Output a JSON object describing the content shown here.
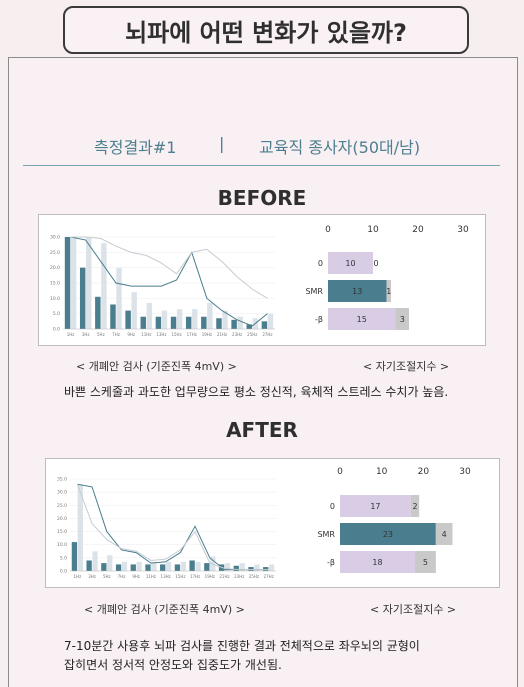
{
  "header": {
    "title": "뇌파에 어떤 변화가 있을까?"
  },
  "subject": {
    "result": "측정결과#1",
    "separator": "|",
    "person": "교육직 종사자(50대/남)"
  },
  "before": {
    "heading": "BEFORE",
    "caption_left": "< 개폐안 검사 (기준진폭 4mV) >",
    "caption_right": "< 자기조절지수 >",
    "note": "바쁜 스케줄과 과도한 업무량으로 평소 정신적, 육체적 스트레스 수치가 높음."
  },
  "after": {
    "heading": "AFTER",
    "caption_left": "< 개폐안 검사 (기준진폭 4mV) >",
    "caption_right": "< 자기조절지수 >",
    "note_line1": "7-10분간 사용후 뇌파 검사를 진행한 결과 전체적으로 좌우뇌의 균형이",
    "note_line2": "잡히면서 정서적 안정도와 집중도가 개선됨."
  },
  "colors": {
    "dark_bar": "#4a7d8e",
    "light_bar": "#dbe3e9",
    "lavender": "#d9cde6",
    "gray": "#c9c9c9",
    "line_dark": "#4a7d8e",
    "line_light": "#c5ccd2"
  },
  "chart_data": [
    {
      "type": "bar",
      "ylim": [
        0,
        30
      ],
      "yticks": [
        "0.0",
        "5.0",
        "10.0",
        "15.0",
        "20.0",
        "25.0",
        "30.0"
      ],
      "categories": [
        "1Hz",
        "3Hz",
        "5Hz",
        "7Hz",
        "9Hz",
        "11Hz",
        "13Hz",
        "15Hz",
        "17Hz",
        "19Hz",
        "21Hz",
        "23Hz",
        "25Hz",
        "27Hz"
      ],
      "series": [
        {
          "values": [
            30,
            20,
            10.5,
            8,
            6,
            4,
            4,
            4,
            4,
            4,
            3.5,
            3,
            1.5,
            2.5
          ]
        },
        {
          "values": [
            30,
            30,
            28,
            20,
            12,
            8.5,
            6,
            6.5,
            6.5,
            8.5,
            6,
            4,
            3.5,
            5
          ]
        }
      ],
      "lines": [
        {
          "values": [
            30,
            29,
            22,
            15,
            14,
            14,
            14,
            16,
            25,
            10,
            6,
            3,
            1,
            5
          ]
        },
        {
          "values": [
            30,
            30,
            29.5,
            27,
            25,
            24,
            21.5,
            18,
            25,
            26,
            22,
            17,
            13,
            10
          ]
        }
      ]
    },
    {
      "type": "bar",
      "orientation": "horizontal",
      "xlim": [
        0,
        30
      ],
      "xticks": [
        0,
        10,
        20,
        30
      ],
      "categories": [
        "0",
        "SMR",
        "-β"
      ],
      "segments": [
        {
          "label": "10",
          "values": [
            10,
            13,
            15
          ]
        },
        {
          "label": "0",
          "values": [
            0,
            1,
            3
          ]
        }
      ]
    },
    {
      "type": "bar",
      "ylim": [
        0,
        35
      ],
      "yticks": [
        "0.0",
        "5.0",
        "10.0",
        "15.0",
        "20.0",
        "25.0",
        "30.0",
        "35.0"
      ],
      "categories": [
        "1Hz",
        "3Hz",
        "5Hz",
        "7Hz",
        "9Hz",
        "11Hz",
        "13Hz",
        "15Hz",
        "17Hz",
        "19Hz",
        "21Hz",
        "23Hz",
        "25Hz",
        "27Hz"
      ],
      "series": [
        {
          "values": [
            11,
            4,
            3,
            2.5,
            2.5,
            2.5,
            2.5,
            2.5,
            4,
            3,
            2.5,
            2,
            1.5,
            1.5
          ]
        },
        {
          "values": [
            33,
            7.5,
            6,
            3.5,
            3.5,
            3.5,
            3.5,
            3.5,
            3.5,
            5.5,
            3,
            3,
            2.5,
            2.5
          ]
        }
      ],
      "lines": [
        {
          "values": [
            33,
            32,
            15,
            8,
            7,
            3,
            3.5,
            7,
            17,
            5,
            0.5,
            0.5,
            0.5,
            0.5
          ]
        },
        {
          "values": [
            33,
            18,
            12,
            8.5,
            7.5,
            4,
            4.5,
            8,
            15,
            3,
            1,
            0.5,
            0.5,
            0.5
          ]
        }
      ]
    },
    {
      "type": "bar",
      "orientation": "horizontal",
      "xlim": [
        0,
        30
      ],
      "xticks": [
        0,
        10,
        20,
        30
      ],
      "categories": [
        "0",
        "SMR",
        "-β"
      ],
      "segments": [
        {
          "values": [
            17,
            23,
            18
          ]
        },
        {
          "values": [
            2,
            4,
            5
          ]
        }
      ]
    }
  ]
}
